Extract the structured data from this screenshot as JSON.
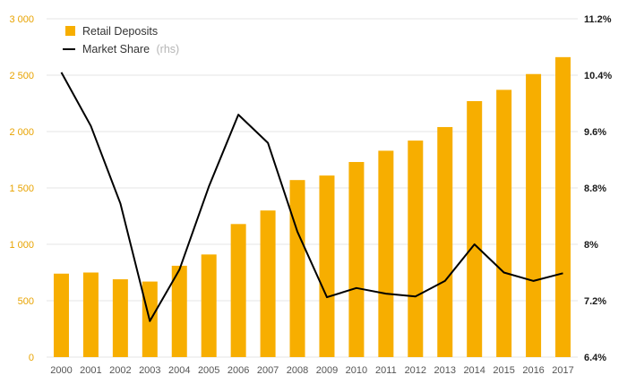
{
  "colors": {
    "bar": "#F7AE00",
    "line": "#000000",
    "left_tick": "#E8A300",
    "right_tick": "#1A1A1A",
    "x_tick": "#555555",
    "grid": "#E6E6E6",
    "legend_text": "#333333",
    "legend_note": "#B5B5B5"
  },
  "legend": {
    "bar_label": "Retail Deposits",
    "line_label": "Market Share",
    "line_note": "(rhs)"
  },
  "chart_data": {
    "type": "bar",
    "title": "",
    "xlabel": "",
    "ylabel": "",
    "y2label": "",
    "legend_position": "top-left",
    "grid": true,
    "categories": [
      "2000",
      "2001",
      "2002",
      "2003",
      "2004",
      "2005",
      "2006",
      "2007",
      "2008",
      "2009",
      "2010",
      "2011",
      "2012",
      "2013",
      "2014",
      "2015",
      "2016",
      "2017"
    ],
    "ylim": [
      0,
      3000
    ],
    "y_ticks": [
      0,
      500,
      1000,
      1500,
      2000,
      2500,
      3000
    ],
    "y_tick_labels": [
      "0",
      "500",
      "1 000",
      "1 500",
      "2 000",
      "2 500",
      "3 000"
    ],
    "y2lim": [
      6.4,
      11.2
    ],
    "y2_ticks": [
      6.4,
      7.2,
      8.0,
      8.8,
      9.6,
      10.4,
      11.2
    ],
    "y2_tick_labels": [
      "6.4%",
      "7.2%",
      "8%",
      "8.8%",
      "9.6%",
      "10.4%",
      "11.2%"
    ],
    "series": [
      {
        "name": "Retail Deposits",
        "type": "bar",
        "axis": "left",
        "values": [
          740,
          750,
          690,
          670,
          810,
          910,
          1180,
          1300,
          1570,
          1610,
          1730,
          1830,
          1920,
          2040,
          2270,
          2370,
          2510,
          2660
        ]
      },
      {
        "name": "Market Share",
        "type": "line",
        "axis": "right",
        "values": [
          10.44,
          9.68,
          8.58,
          6.91,
          7.64,
          8.82,
          9.84,
          9.44,
          8.18,
          7.25,
          7.38,
          7.3,
          7.26,
          7.48,
          8.0,
          7.6,
          7.48,
          7.59
        ]
      }
    ]
  }
}
